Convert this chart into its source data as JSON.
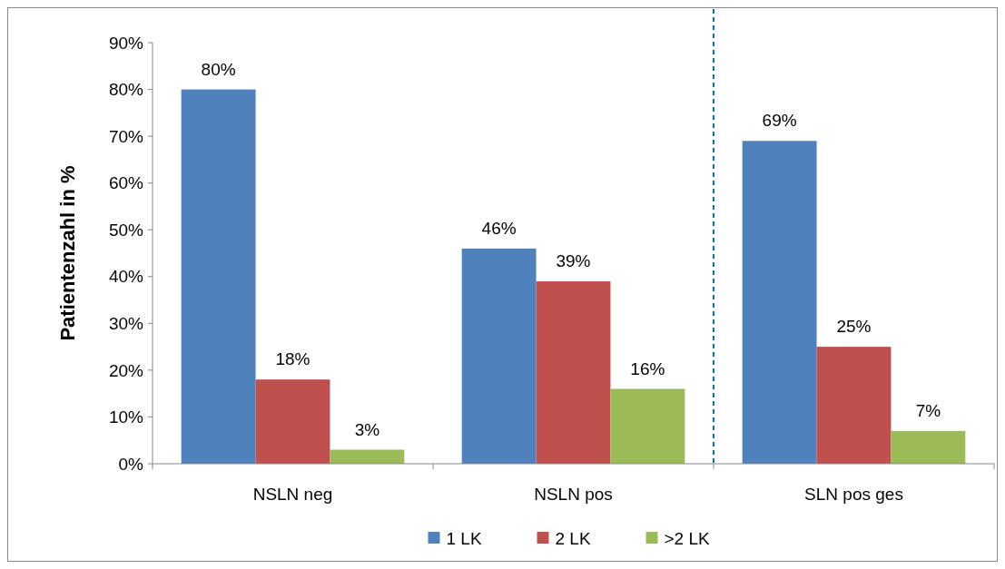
{
  "chart_data": {
    "type": "bar",
    "ylabel": "Patientenzahl in %",
    "categories": [
      "NSLN neg",
      "NSLN pos",
      "SLN pos ges"
    ],
    "series": [
      {
        "name": "1 LK",
        "color": "#4f81bd",
        "values": [
          80,
          46,
          69
        ],
        "value_labels": [
          "80%",
          "46%",
          "69%"
        ]
      },
      {
        "name": "2 LK",
        "color": "#c0504d",
        "values": [
          18,
          39,
          25
        ],
        "value_labels": [
          "18%",
          "39%",
          "25%"
        ]
      },
      {
        "name": ">2 LK",
        "color": "#9bbb59",
        "values": [
          3,
          16,
          7
        ],
        "value_labels": [
          "3%",
          "16%",
          "7%"
        ]
      }
    ],
    "ylim": [
      0,
      90
    ],
    "yticks": [
      {
        "value": 0,
        "label": "0%"
      },
      {
        "value": 10,
        "label": "10%"
      },
      {
        "value": 20,
        "label": "20%"
      },
      {
        "value": 30,
        "label": "30%"
      },
      {
        "value": 40,
        "label": "40%"
      },
      {
        "value": 50,
        "label": "50%"
      },
      {
        "value": 60,
        "label": "60%"
      },
      {
        "value": 70,
        "label": "70%"
      },
      {
        "value": 80,
        "label": "80%"
      },
      {
        "value": 90,
        "label": "90%"
      }
    ],
    "legend": "bottom",
    "grid": false
  }
}
